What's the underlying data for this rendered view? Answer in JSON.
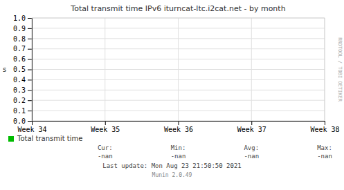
{
  "chart_data": {
    "type": "line",
    "title": "Total transmit time IPv6 iturncat-ltc.i2cat.net - by month",
    "y_label": "s",
    "categories": [
      "Week 34",
      "Week 35",
      "Week 36",
      "Week 37",
      "Week 38"
    ],
    "series": [
      {
        "name": "Total transmit time",
        "color": "#00bb00",
        "values": [
          null,
          null,
          null,
          null,
          null
        ]
      }
    ],
    "ylim": [
      0,
      1
    ],
    "yticks": [
      {
        "value": 0,
        "label": "0.0"
      },
      0.1,
      0.2,
      0.3,
      0.4,
      0.5,
      0.6,
      0.7,
      0.8,
      0.9,
      {
        "value": 1,
        "label": "1.0"
      }
    ],
    "grid": true,
    "legend": "bottom",
    "annotations": [
      "Cur:",
      "Min:",
      "Avg:",
      "Max:",
      "-nan",
      "-nan",
      "-nan",
      "-nan",
      "Last update: Mon Aug 23 21:50:50 2021",
      "Munin 2.0.49",
      "RRDTOOL / TOBI OETIKER"
    ]
  }
}
